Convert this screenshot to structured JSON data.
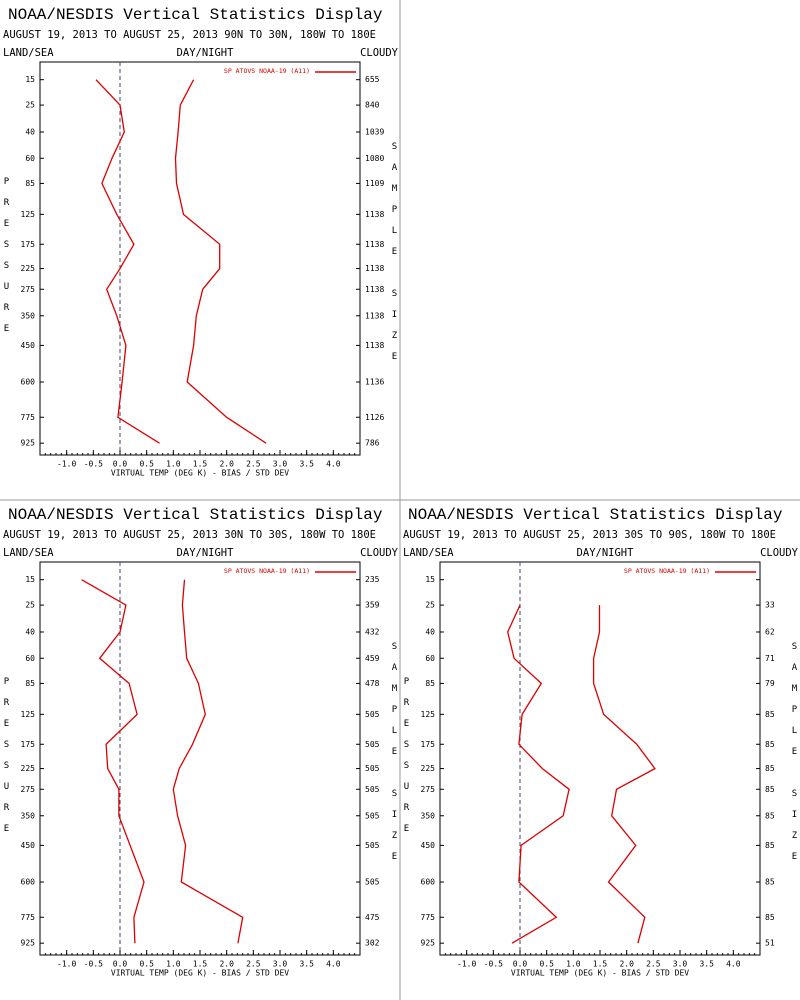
{
  "chart_data": [
    {
      "type": "line",
      "title": "NOAA/NESDIS Vertical Statistics Display",
      "subtitle": "AUGUST 19, 2013 TO AUGUST 25, 2013 90N TO 30N, 180W TO 180E",
      "label_left": "LAND/SEA",
      "label_center": "DAY/NIGHT",
      "label_right": "CLOUDY",
      "legend": "SP ATOVS NOAA-19 (A11)",
      "y_label": "PRESSURE",
      "y2_label": "SAMPLE SIZE",
      "x_label": "VIRTUAL TEMP (DEG K) - BIAS / STD DEV",
      "categories": [
        15,
        25,
        40,
        60,
        85,
        125,
        175,
        225,
        275,
        350,
        450,
        600,
        775,
        925
      ],
      "sample_size": [
        655,
        840,
        1039,
        1080,
        1109,
        1138,
        1138,
        1138,
        1138,
        1138,
        1138,
        1136,
        1126,
        786
      ],
      "series": [
        {
          "color": "#dd0000",
          "values": [
            -0.45,
            0.0,
            0.08,
            -0.15,
            -0.34,
            -0.06,
            0.26,
            0.0,
            -0.25,
            -0.06,
            0.11,
            0.04,
            -0.04,
            0.74
          ]
        },
        {
          "color": "#dd0000",
          "values": [
            1.38,
            1.13,
            1.09,
            1.04,
            1.06,
            1.19,
            1.87,
            1.87,
            1.55,
            1.43,
            1.38,
            1.26,
            2.0,
            2.74
          ]
        }
      ],
      "xlim": [
        -1.5,
        4.5
      ],
      "xticks": [
        {
          "value": -1,
          "label": "-1.0"
        },
        -0.5,
        {
          "value": 0,
          "label": "0.0"
        },
        0.5,
        {
          "value": 1,
          "label": "1.0"
        },
        1.5,
        {
          "value": 2,
          "label": "2.0"
        },
        2.5,
        {
          "value": 3,
          "label": "3.0"
        },
        3.5,
        {
          "value": 4,
          "label": "4.0"
        }
      ],
      "ylim": [
        10,
        1000
      ]
    },
    {
      "type": "line",
      "title": "NOAA/NESDIS Vertical Statistics Display",
      "subtitle": "AUGUST 19, 2013 TO AUGUST 25, 2013 30N TO 30S, 180W TO 180E",
      "label_left": "LAND/SEA",
      "label_center": "DAY/NIGHT",
      "label_right": "CLOUDY",
      "legend": "SP ATOVS NOAA-19 (A11)",
      "y_label": "PRESSURE",
      "y2_label": "SAMPLE SIZE",
      "x_label": "VIRTUAL TEMP (DEG K) - BIAS / STD DEV",
      "categories": [
        15,
        25,
        40,
        60,
        85,
        125,
        175,
        225,
        275,
        350,
        450,
        600,
        775,
        925
      ],
      "sample_size": [
        235,
        359,
        432,
        459,
        478,
        505,
        505,
        505,
        505,
        505,
        505,
        505,
        475,
        302
      ],
      "series": [
        {
          "color": "#dd0000",
          "values": [
            -0.72,
            0.11,
            0.0,
            -0.38,
            0.17,
            0.32,
            -0.26,
            -0.23,
            -0.02,
            -0.02,
            0.19,
            0.45,
            0.26,
            0.28
          ]
        },
        {
          "color": "#dd0000",
          "values": [
            1.21,
            1.17,
            1.21,
            1.25,
            1.47,
            1.6,
            1.36,
            1.11,
            1.0,
            1.08,
            1.23,
            1.15,
            2.3,
            2.21
          ]
        }
      ],
      "xlim": [
        -1.5,
        4.5
      ],
      "xticks": [
        {
          "value": -1,
          "label": "-1.0"
        },
        -0.5,
        {
          "value": 0,
          "label": "0.0"
        },
        0.5,
        {
          "value": 1,
          "label": "1.0"
        },
        1.5,
        {
          "value": 2,
          "label": "2.0"
        },
        2.5,
        {
          "value": 3,
          "label": "3.0"
        },
        3.5,
        {
          "value": 4,
          "label": "4.0"
        }
      ],
      "ylim": [
        10,
        1000
      ]
    },
    {
      "type": "line",
      "title": "NOAA/NESDIS Vertical Statistics Display",
      "subtitle": "AUGUST 19, 2013 TO AUGUST 25, 2013 30S TO 90S, 180W TO 180E",
      "label_left": "LAND/SEA",
      "label_center": "DAY/NIGHT",
      "label_right": "CLOUDY",
      "legend": "SP ATOVS NOAA-19 (A11)",
      "y_label": "PRESSURE",
      "y2_label": "SAMPLE SIZE",
      "x_label": "VIRTUAL TEMP (DEG K) - BIAS / STD DEV",
      "categories": [
        15,
        25,
        40,
        60,
        85,
        125,
        175,
        225,
        275,
        350,
        450,
        600,
        775,
        925
      ],
      "sample_size": [
        null,
        33,
        62,
        71,
        79,
        85,
        85,
        85,
        85,
        85,
        85,
        85,
        85,
        51
      ],
      "series": [
        {
          "color": "#dd0000",
          "values": [
            null,
            0.0,
            -0.23,
            -0.11,
            0.4,
            0.04,
            -0.02,
            0.42,
            0.92,
            0.81,
            0.02,
            -0.02,
            0.68,
            -0.15
          ]
        },
        {
          "color": "#dd0000",
          "values": [
            null,
            1.49,
            1.49,
            1.38,
            1.38,
            1.57,
            2.19,
            2.53,
            1.81,
            1.72,
            2.17,
            1.66,
            2.34,
            2.21
          ]
        }
      ],
      "xlim": [
        -1.5,
        4.5
      ],
      "xticks": [
        {
          "value": -1,
          "label": "-1.0"
        },
        -0.5,
        {
          "value": 0,
          "label": "0.0"
        },
        0.5,
        {
          "value": 1,
          "label": "1.0"
        },
        1.5,
        {
          "value": 2,
          "label": "2.0"
        },
        2.5,
        {
          "value": 3,
          "label": "3.0"
        },
        3.5,
        {
          "value": 4,
          "label": "4.0"
        }
      ],
      "ylim": [
        10,
        1000
      ]
    }
  ]
}
